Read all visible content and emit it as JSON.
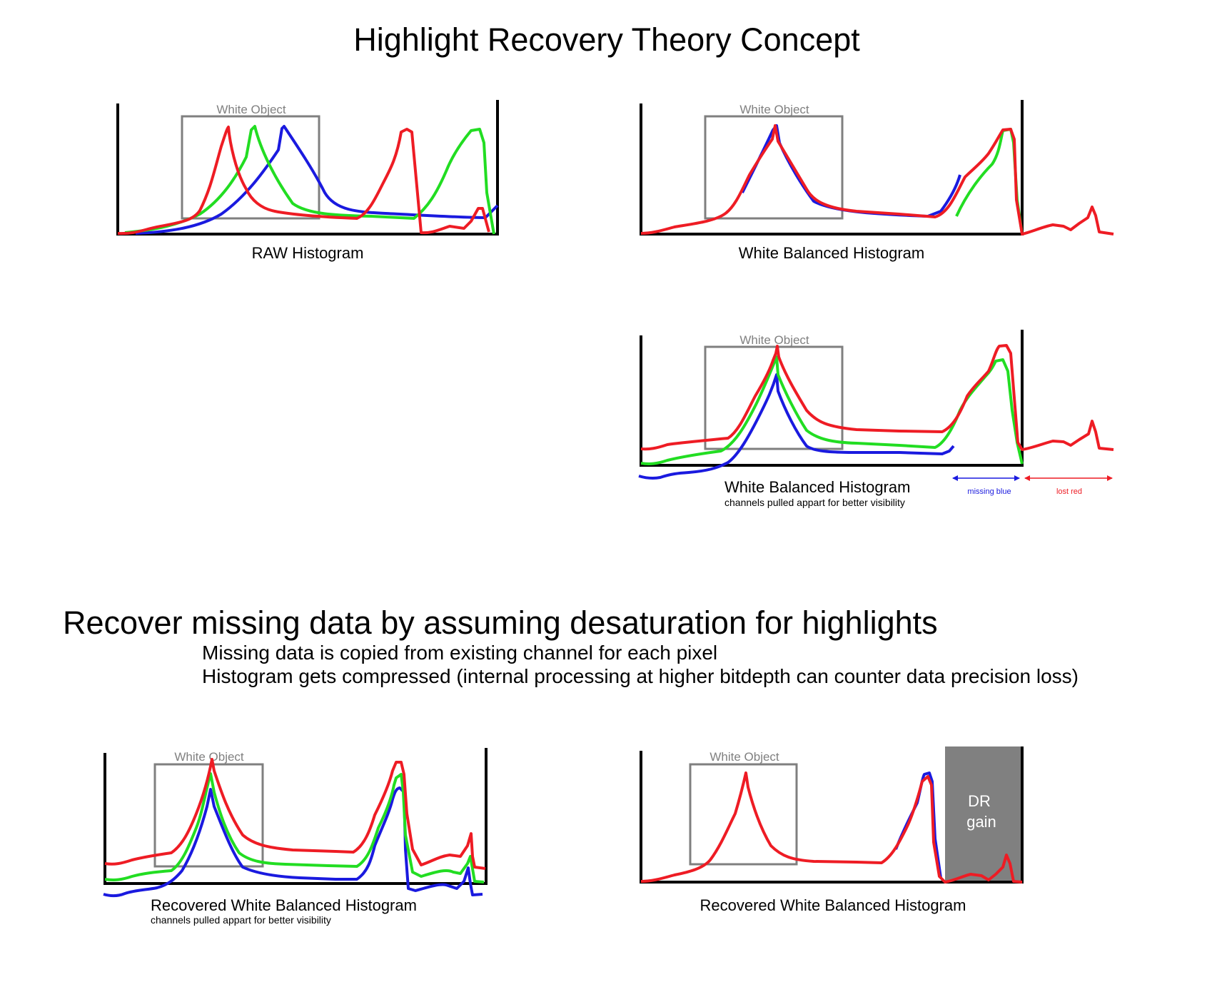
{
  "title": "Highlight Recovery Theory Concept",
  "box_label": "White Object",
  "panels": {
    "raw": {
      "caption": "RAW Histogram"
    },
    "wb": {
      "caption": "White Balanced Histogram"
    },
    "wb_split": {
      "caption": "White Balanced Histogram",
      "subcaption": "channels pulled appart for better visibility",
      "missing_blue_label": "missing blue",
      "lost_red_label": "lost red"
    },
    "recovered_split": {
      "caption": "Recovered White Balanced Histogram",
      "subcaption": "channels pulled appart for better visibility"
    },
    "recovered": {
      "caption": "Recovered White Balanced Histogram",
      "dr_gain_label_1": "DR",
      "dr_gain_label_2": "gain"
    }
  },
  "section": {
    "heading": "Recover missing data by assuming desaturation for highlights",
    "bullets": [
      "Missing data is copied from existing channel for each pixel",
      "Histogram gets compressed (internal processing at higher bitdepth can counter data precision loss)"
    ]
  },
  "colors": {
    "red_channel": "#ee1c24",
    "green_channel": "#22dd22",
    "blue_channel": "#1a1adf",
    "box_stroke": "#7f7f7f",
    "box_label": "#808080",
    "dr_gain_fill": "#808080",
    "axis": "#000000"
  }
}
